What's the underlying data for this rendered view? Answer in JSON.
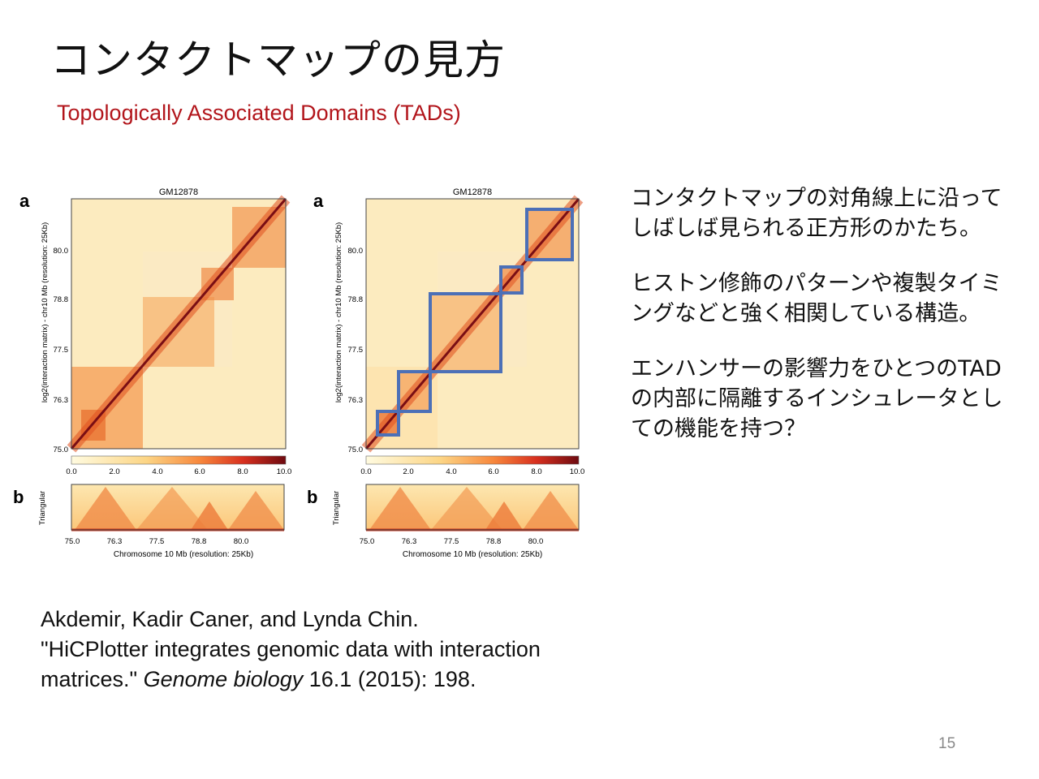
{
  "title": "コンタクトマップの見方",
  "subtitle": "Topologically Associated Domains (TADs)",
  "colors": {
    "subtitle": "#b2151b",
    "tad_box": "#4c70b7",
    "heat_high": "#7a0e14",
    "heat_low": "#fdf6d0"
  },
  "figure": {
    "panels": [
      {
        "panel_a_label": "a",
        "panel_b_label": "b",
        "heatmap_title": "GM12878",
        "ylabel": "log2(interaction matrix) - chr10 Mb (resolution: 25Kb)",
        "y_ticks": [
          "80.0",
          "78.8",
          "77.5",
          "76.3",
          "75.0"
        ],
        "colorbar_ticks": [
          "0.0",
          "2.0",
          "4.0",
          "6.0",
          "8.0",
          "10.0"
        ],
        "triangle_ylabel": "Triangular",
        "x_ticks": [
          "75.0",
          "76.3",
          "77.5",
          "78.8",
          "80.0"
        ],
        "xlabel": "Chromosome 10 Mb (resolution: 25Kb)"
      },
      {
        "panel_a_label": "a",
        "panel_b_label": "b",
        "heatmap_title": "GM12878",
        "ylabel": "log2(interaction matrix) - chr10 Mb (resolution: 25Kb)",
        "y_ticks": [
          "80.0",
          "78.8",
          "77.5",
          "76.3",
          "75.0"
        ],
        "colorbar_ticks": [
          "0.0",
          "2.0",
          "4.0",
          "6.0",
          "8.0",
          "10.0"
        ],
        "triangle_ylabel": "Triangular",
        "x_ticks": [
          "75.0",
          "76.3",
          "77.5",
          "78.8",
          "80.0"
        ],
        "xlabel": "Chromosome 10 Mb (resolution: 25Kb)"
      }
    ]
  },
  "bullets": [
    "コンタクトマップの対角線上に沿ってしばしば見られる正方形のかたち。",
    "ヒストン修飾のパターンや複製タイミングなどと強く相関している構造。",
    "エンハンサーの影響力をひとつのTADの内部に隔離するインシュレータとしての機能を持つ？"
  ],
  "citation": {
    "authors": "Akdemir, Kadir Caner, and Lynda Chin.",
    "article": "\"HiCPlotter integrates genomic data with interaction matrices.\"",
    "journal": "Genome biology",
    "volume": "16.1",
    "year_pages": "(2015): 198."
  },
  "page_number": "15"
}
